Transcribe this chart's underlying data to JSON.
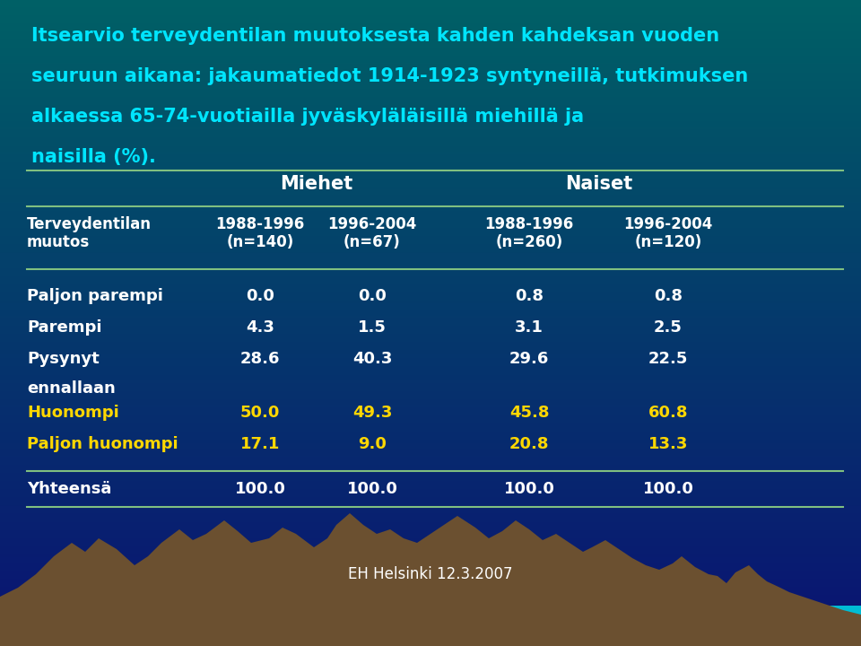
{
  "title_line1": "Itsearvio terveydentilan muutoksesta kahden kahdeksan vuoden",
  "title_line2": "seuruun aikana: jakaumatiedot 1914-1923 syntyneillä, tutkimuksen",
  "title_line3": "alkaessa 65-74-vuotiailla jyväskyläläisillä miehillä ja",
  "title_line4": "naisilla (%).",
  "title_color": "#00E5FF",
  "bg_color_top": "#0A1172",
  "bg_color_mid": "#0D47A1",
  "bg_color_bottom": "#006064",
  "header_group1": "Miehet",
  "header_group2": "Naiset",
  "col_headers": [
    "1988-1996\n(n=140)",
    "1996-2004\n(n=67)",
    "1988-1996\n(n=260)",
    "1996-2004\n(n=120)"
  ],
  "row_label_col": "Terveydentilan\nmuutos",
  "rows": [
    {
      "label": "Paljon parempi",
      "label2": null,
      "values": [
        "0.0",
        "0.0",
        "0.8",
        "0.8"
      ],
      "color": "white"
    },
    {
      "label": "Parempi",
      "label2": null,
      "values": [
        "4.3",
        "1.5",
        "3.1",
        "2.5"
      ],
      "color": "white"
    },
    {
      "label": "Pysynyt",
      "label2": "ennallaan",
      "values": [
        "28.6",
        "40.3",
        "29.6",
        "22.5"
      ],
      "color": "white"
    },
    {
      "label": "Huonompi",
      "label2": null,
      "values": [
        "50.0",
        "49.3",
        "45.8",
        "60.8"
      ],
      "color": "#FFD700"
    },
    {
      "label": "Paljon huonompi",
      "label2": null,
      "values": [
        "17.1",
        "9.0",
        "20.8",
        "13.3"
      ],
      "color": "#FFD700"
    }
  ],
  "total_row": {
    "label": "Yhteensä",
    "values": [
      "100.0",
      "100.0",
      "100.0",
      "100.0"
    ],
    "color": "white"
  },
  "footer": "EH Helsinki 12.3.2007",
  "header_text_color": "white",
  "line_color": "#80C080",
  "mountain_color": "#6B5030",
  "mountain_shadow": "#4A3820",
  "teal_color": "#00BCD4",
  "sky_bottom_color": "#0097A7"
}
